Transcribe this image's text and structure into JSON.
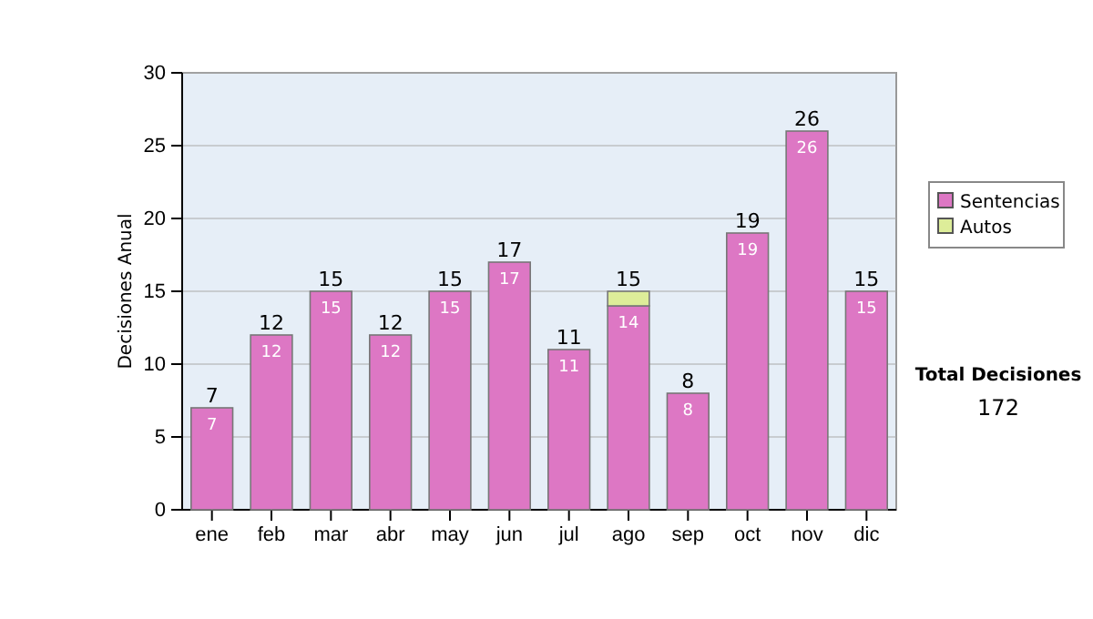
{
  "chart_data": {
    "type": "bar",
    "ylabel": "Decisiones Anual",
    "categories": [
      "ene",
      "feb",
      "mar",
      "abr",
      "may",
      "jun",
      "jul",
      "ago",
      "sep",
      "oct",
      "nov",
      "dic"
    ],
    "series": [
      {
        "name": "Sentencias",
        "color": "#dd77c4",
        "values": [
          7,
          12,
          15,
          12,
          15,
          17,
          11,
          14,
          8,
          19,
          26,
          15
        ],
        "value_labels": [
          "7",
          "12",
          "15",
          "12",
          "15",
          "17",
          "11",
          "14",
          "8",
          "19",
          "26",
          "15"
        ]
      },
      {
        "name": "Autos",
        "color": "#dded99",
        "values": [
          0,
          0,
          0,
          0,
          0,
          0,
          0,
          1,
          0,
          0,
          0,
          0
        ]
      }
    ],
    "stacked": true,
    "totals": [
      "7",
      "12",
      "15",
      "12",
      "15",
      "17",
      "11",
      "15",
      "8",
      "19",
      "26",
      "15"
    ],
    "ylim": [
      0,
      30
    ],
    "yticks": [
      0,
      5,
      10,
      15,
      20,
      25,
      30
    ],
    "grid": "y",
    "legend": "right",
    "annotations": [
      "Total Decisiones",
      "172"
    ]
  }
}
